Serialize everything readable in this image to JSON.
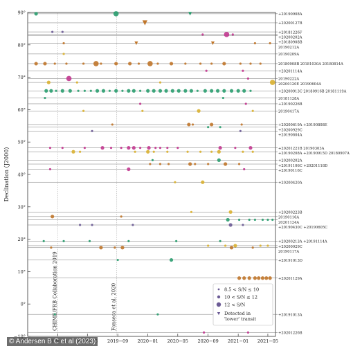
{
  "credit": "© Andersen B C et al (2023)",
  "chart_data": {
    "type": "scatter",
    "ylabel": "Declination (J2000)",
    "xlabel": "",
    "ylim": [
      -10,
      90
    ],
    "yticks": [
      {
        "v": 90,
        "label": "90°"
      },
      {
        "v": 80,
        "label": "80°"
      },
      {
        "v": 70,
        "label": "70°"
      },
      {
        "v": 60,
        "label": "60°"
      },
      {
        "v": 50,
        "label": "50°"
      },
      {
        "v": 40,
        "label": "40°"
      },
      {
        "v": 30,
        "label": "30°"
      },
      {
        "v": 20,
        "label": "20°"
      },
      {
        "v": 10,
        "label": "10°"
      },
      {
        "v": 0,
        "label": "0°"
      },
      {
        "v": -10,
        "label": "−10°"
      }
    ],
    "xlim": [
      "2018-09-01",
      "2021-06-01"
    ],
    "xticks": [
      {
        "date": "2018-09-01",
        "label": "2018−09"
      },
      {
        "date": "2019-01-01",
        "label": "2019−01"
      },
      {
        "date": "2019-05-01",
        "label": "2019−05"
      },
      {
        "date": "2019-09-01",
        "label": "2019−09"
      },
      {
        "date": "2020-01-01",
        "label": "2020−01"
      },
      {
        "date": "2020-05-01",
        "label": "2020−05"
      },
      {
        "date": "2020-09-01",
        "label": "2020−09"
      },
      {
        "date": "2021-01-01",
        "label": "2021−01"
      },
      {
        "date": "2021-05-01",
        "label": "2021−05"
      }
    ],
    "annotations": [
      {
        "date": "2019-01-01",
        "text": "CHIME/FRB Collaboration 2019"
      },
      {
        "date": "2019-08-28",
        "text": "Fonseca et al. 2020"
      }
    ],
    "legend": {
      "position": "lower-right",
      "entries": [
        {
          "label": "8.5 < S/N ≤ 10",
          "size": "small"
        },
        {
          "label": "10 < S/N ≤ 12",
          "size": "medium"
        },
        {
          "label": "12 < S/N",
          "size": "large"
        },
        {
          "label": "Detected in 'lower' transit",
          "size": "triangle"
        }
      ]
    },
    "colors": {
      "green": "#2a9d6f",
      "magenta": "#c2378f",
      "orange": "#c0762a",
      "yellow": "#d9b030",
      "purple": "#6b5b95",
      "gray": "#555555"
    },
    "sources": [
      {
        "dec": 89.6,
        "label": "+20190908A",
        "color": "green",
        "points": [
          [
            "2018-10-05",
            2
          ],
          [
            "2019-08-25",
            3
          ]
        ],
        "tri": [
          [
            "2020-06-20",
            1
          ]
        ]
      },
      {
        "dec": 86.8,
        "label": "+20200127B",
        "color": "orange",
        "points": [],
        "tri": [
          [
            "2019-12-20",
            2
          ]
        ]
      },
      {
        "dec": 84.0,
        "label": "+20181226F",
        "color": "purple",
        "points": [
          [
            "2018-12-10",
            1
          ],
          [
            "2019-01-20",
            1
          ]
        ]
      },
      {
        "dec": 83.2,
        "label": "+20200202A",
        "color": "magenta",
        "points": [
          [
            "2020-08-10",
            1
          ],
          [
            "2020-11-15",
            3
          ],
          [
            "2020-12-10",
            1
          ]
        ]
      },
      {
        "dec": 82.8,
        "label": "+20180908B",
        "color": "gray",
        "points": []
      },
      {
        "dec": 80.5,
        "label": "20190212A",
        "color": "orange",
        "points": [
          [
            "2019-01-25",
            1
          ],
          [
            "2021-03-10",
            1
          ],
          [
            "2021-05-10",
            1
          ]
        ],
        "tri": [
          [
            "2019-11-15",
            1
          ],
          [
            "2020-09-20",
            1
          ]
        ]
      },
      {
        "dec": 77.2,
        "label": "20190209A",
        "color": "yellow",
        "points": [
          [
            "2019-01-25",
            1
          ]
        ]
      },
      {
        "dec": 74.2,
        "label": "20180908B 20181030A 20180814A",
        "color": "orange",
        "points": [
          [
            "2018-10-05",
            2
          ],
          [
            "2018-11-10",
            2
          ],
          [
            "2018-12-20",
            1
          ],
          [
            "2019-02-05",
            1
          ],
          [
            "2019-04-15",
            1
          ],
          [
            "2019-06-05",
            3
          ],
          [
            "2019-06-25",
            1
          ],
          [
            "2019-08-25",
            2
          ],
          [
            "2019-10-20",
            2
          ],
          [
            "2019-11-25",
            1
          ],
          [
            "2020-01-10",
            3
          ],
          [
            "2020-02-10",
            1
          ],
          [
            "2020-04-05",
            2
          ],
          [
            "2020-06-01",
            1
          ],
          [
            "2020-08-01",
            1
          ],
          [
            "2020-09-15",
            1
          ],
          [
            "2020-11-05",
            2
          ],
          [
            "2021-01-10",
            1
          ],
          [
            "2021-02-20",
            1
          ],
          [
            "2021-04-01",
            1
          ]
        ]
      },
      {
        "dec": 72.0,
        "label": "+20201114A",
        "color": "magenta",
        "points": [
          [
            "2020-08-25",
            1
          ],
          [
            "2021-01-20",
            1
          ]
        ]
      },
      {
        "dec": 69.6,
        "label": "20190222A",
        "color": "magenta",
        "points": [
          [
            "2019-02-15",
            3
          ],
          [
            "2021-02-10",
            1
          ]
        ]
      },
      {
        "dec": 68.4,
        "label": "20200120E 20190604A",
        "color": "yellow",
        "points": [
          [
            "2018-11-25",
            2
          ],
          [
            "2019-03-20",
            1
          ],
          [
            "2020-02-20",
            1
          ],
          [
            "2021-05-20",
            3
          ]
        ]
      },
      {
        "dec": 65.8,
        "label": "+20200913C 20180916B 20181119A",
        "color": "green",
        "points": [
          [
            "2018-11-15",
            2
          ],
          [
            "2018-12-05",
            2
          ],
          [
            "2018-12-25",
            1
          ],
          [
            "2019-01-20",
            2
          ],
          [
            "2019-02-20",
            2
          ],
          [
            "2019-03-25",
            1
          ],
          [
            "2019-04-20",
            1
          ],
          [
            "2019-05-15",
            1
          ],
          [
            "2019-06-10",
            2
          ],
          [
            "2019-07-05",
            2
          ],
          [
            "2019-07-30",
            1
          ],
          [
            "2019-08-25",
            2
          ],
          [
            "2019-09-20",
            1
          ],
          [
            "2019-10-15",
            2
          ],
          [
            "2019-11-05",
            2
          ],
          [
            "2019-12-01",
            1
          ],
          [
            "2020-01-01",
            2
          ],
          [
            "2020-01-25",
            2
          ],
          [
            "2020-02-20",
            2
          ],
          [
            "2020-03-15",
            2
          ],
          [
            "2020-04-10",
            2
          ],
          [
            "2020-05-05",
            2
          ],
          [
            "2020-06-01",
            2
          ],
          [
            "2020-06-25",
            2
          ],
          [
            "2020-07-20",
            1
          ],
          [
            "2020-08-20",
            2
          ],
          [
            "2020-09-15",
            2
          ],
          [
            "2020-10-10",
            2
          ],
          [
            "2020-11-05",
            2
          ],
          [
            "2020-12-05",
            2
          ],
          [
            "2021-01-01",
            2
          ],
          [
            "2021-01-25",
            2
          ],
          [
            "2021-02-20",
            1
          ]
        ]
      },
      {
        "dec": 63.6,
        "label": "20181128A",
        "color": "green",
        "points": [
          [
            "2018-11-10",
            1
          ],
          [
            "2020-11-01",
            1
          ]
        ]
      },
      {
        "dec": 61.8,
        "label": "+20190226B",
        "color": "magenta",
        "points": [
          [
            "2019-12-01",
            1
          ],
          [
            "2021-02-01",
            1
          ]
        ]
      },
      {
        "dec": 59.6,
        "label": "20190417A",
        "color": "yellow",
        "points": [
          [
            "2019-04-15",
            1
          ],
          [
            "2019-12-10",
            1
          ],
          [
            "2020-07-25",
            2
          ],
          [
            "2021-03-01",
            1
          ]
        ]
      },
      {
        "dec": 55.4,
        "label": "+20200619A +20190808E",
        "color": "orange",
        "points": [
          [
            "2019-08-10",
            1
          ],
          [
            "2020-06-15",
            2
          ],
          [
            "2020-07-01",
            1
          ],
          [
            "2020-09-15",
            2
          ],
          [
            "2021-01-15",
            1
          ]
        ]
      },
      {
        "dec": 54.6,
        "label": "+20200929C",
        "color": "green",
        "points": [
          [
            "2020-09-01",
            1
          ],
          [
            "2020-10-20",
            1
          ]
        ]
      },
      {
        "dec": 53.4,
        "label": "+20190604A",
        "color": "purple",
        "points": [
          [
            "2019-05-20",
            1
          ],
          [
            "2021-01-10",
            1
          ]
        ]
      },
      {
        "dec": 48.2,
        "label": "+20201221B 20190303A",
        "color": "magenta",
        "points": [
          [
            "2018-12-01",
            1
          ],
          [
            "2019-01-20",
            1
          ],
          [
            "2019-04-20",
            1
          ],
          [
            "2019-07-01",
            2
          ],
          [
            "2019-08-05",
            1
          ],
          [
            "2019-09-15",
            1
          ],
          [
            "2019-10-15",
            2
          ],
          [
            "2019-11-05",
            2
          ],
          [
            "2019-12-01",
            1
          ],
          [
            "2020-01-05",
            2
          ],
          [
            "2020-02-01",
            1
          ],
          [
            "2020-02-20",
            1
          ],
          [
            "2020-03-20",
            1
          ],
          [
            "2020-05-01",
            1
          ],
          [
            "2020-10-20",
            2
          ],
          [
            "2020-12-20",
            1
          ],
          [
            "2021-02-20",
            2
          ]
        ]
      },
      {
        "dec": 47.0,
        "label": "+20190208A +20190915D 20180907A",
        "color": "yellow",
        "points": [
          [
            "2019-03-05",
            2
          ],
          [
            "2019-04-01",
            1
          ],
          [
            "2019-11-10",
            1
          ],
          [
            "2020-01-01",
            2
          ],
          [
            "2020-01-25",
            1
          ],
          [
            "2020-03-20",
            1
          ],
          [
            "2020-06-10",
            1
          ],
          [
            "2020-08-01",
            1
          ],
          [
            "2020-09-15",
            1
          ],
          [
            "2020-10-15",
            2
          ],
          [
            "2021-01-20",
            1
          ],
          [
            "2021-03-01",
            1
          ]
        ]
      },
      {
        "dec": 44.4,
        "label": "+20200202A",
        "color": "green",
        "points": [
          [
            "2020-01-20",
            1
          ],
          [
            "2020-10-15",
            2
          ]
        ]
      },
      {
        "dec": 43.2,
        "label": "+20191106C +20201118D",
        "color": "orange",
        "points": [
          [
            "2020-01-10",
            1
          ],
          [
            "2020-02-20",
            1
          ],
          [
            "2020-03-25",
            1
          ],
          [
            "2020-06-20",
            2
          ],
          [
            "2020-07-10",
            1
          ],
          [
            "2020-09-01",
            1
          ],
          [
            "2020-11-10",
            2
          ],
          [
            "2021-01-05",
            1
          ]
        ]
      },
      {
        "dec": 41.6,
        "label": "+20190116C",
        "color": "magenta",
        "points": [
          [
            "2018-12-01",
            1
          ],
          [
            "2019-10-15",
            2
          ],
          [
            "2021-01-25",
            1
          ]
        ]
      },
      {
        "dec": 37.6,
        "label": "+20200420A",
        "color": "yellow",
        "points": [
          [
            "2020-04-20",
            1
          ],
          [
            "2020-08-10",
            2
          ]
        ]
      },
      {
        "dec": 28.4,
        "label": "+20200223B",
        "color": "yellow",
        "points": [
          [
            "2020-06-25",
            1
          ],
          [
            "2020-12-01",
            2
          ]
        ]
      },
      {
        "dec": 27.0,
        "label": "20190116A",
        "color": "orange",
        "points": [
          [
            "2018-12-10",
            2
          ],
          [
            "2019-09-15",
            1
          ]
        ]
      },
      {
        "dec": 26.0,
        "label": "20201124A",
        "color": "green",
        "points": [
          [
            "2020-11-20",
            2
          ],
          [
            "2021-01-05",
            1
          ],
          [
            "2021-02-15",
            1
          ],
          [
            "2021-03-10",
            1
          ],
          [
            "2021-04-10",
            1
          ],
          [
            "2021-05-01",
            1
          ],
          [
            "2021-05-20",
            1
          ]
        ]
      },
      {
        "dec": 24.4,
        "label": "+20190430C +20190605C",
        "color": "purple",
        "points": [
          [
            "2019-04-01",
            1
          ],
          [
            "2019-05-20",
            1
          ],
          [
            "2019-11-01",
            1
          ],
          [
            "2020-12-01",
            2
          ],
          [
            "2021-01-20",
            1
          ]
        ]
      },
      {
        "dec": 19.4,
        "label": "+20200213A +20191114A",
        "color": "green",
        "points": [
          [
            "2018-11-05",
            1
          ],
          [
            "2019-01-25",
            1
          ],
          [
            "2019-05-10",
            1
          ],
          [
            "2019-10-15",
            1
          ],
          [
            "2020-04-25",
            1
          ],
          [
            "2020-10-20",
            1
          ]
        ]
      },
      {
        "dec": 18.0,
        "label": "+20200929C",
        "color": "yellow",
        "points": [
          [
            "2020-09-01",
            1
          ],
          [
            "2020-11-10",
            1
          ],
          [
            "2020-12-20",
            2
          ],
          [
            "2021-04-01",
            1
          ],
          [
            "2021-05-01",
            1
          ]
        ]
      },
      {
        "dec": 17.4,
        "label": "20190117A",
        "color": "orange",
        "points": [
          [
            "2018-12-05",
            1
          ],
          [
            "2019-06-25",
            2
          ],
          [
            "2019-08-20",
            1
          ],
          [
            "2019-09-20",
            2
          ],
          [
            "2020-12-05",
            2
          ],
          [
            "2021-03-01",
            1
          ]
        ]
      },
      {
        "dec": 13.6,
        "label": "+20191013D",
        "color": "green",
        "points": [
          [
            "2019-09-01",
            1
          ],
          [
            "2020-04-05",
            2
          ]
        ]
      },
      {
        "dec": 8.0,
        "label": "+20201129A",
        "color": "orange",
        "points": [
          [
            "2021-01-05",
            2
          ],
          [
            "2021-01-25",
            2
          ],
          [
            "2021-02-15",
            2
          ],
          [
            "2021-03-10",
            2
          ],
          [
            "2021-03-25",
            2
          ],
          [
            "2021-04-10",
            2
          ],
          [
            "2021-04-25",
            2
          ],
          [
            "2021-05-10",
            2
          ]
        ]
      },
      {
        "dec": -3.2,
        "label": "+20191013A",
        "color": "green",
        "points": [
          [
            "2018-12-20",
            1
          ],
          [
            "2020-02-10",
            1
          ]
        ]
      },
      {
        "dec": -8.8,
        "label": "+20201226B",
        "color": "magenta",
        "points": [
          [
            "2020-08-15",
            1
          ],
          [
            "2021-02-10",
            1
          ]
        ]
      }
    ]
  }
}
